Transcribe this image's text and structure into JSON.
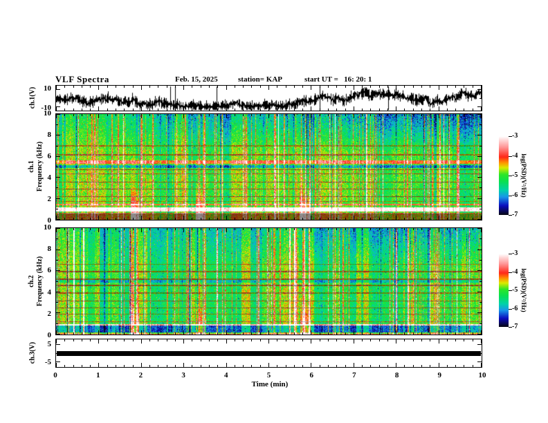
{
  "header": {
    "title": "VLF Spectra",
    "date": "Feb. 15, 2025",
    "station": "station= KAP",
    "start_ut": "start UT =   16: 20: 1"
  },
  "xaxis": {
    "label": "Time (min)",
    "ticks": [
      0,
      1,
      2,
      3,
      4,
      5,
      6,
      7,
      8,
      9,
      10
    ],
    "range": [
      0,
      10
    ],
    "minor_step_min": 0.2
  },
  "colorbar": {
    "label": "log(PSD)(V²/Hz)",
    "ticks": [
      -3,
      -4,
      -5,
      -6,
      -7
    ],
    "range": [
      -3,
      -7
    ],
    "stops": [
      [
        -7,
        8,
        8,
        24
      ],
      [
        -6.55,
        12,
        12,
        190
      ],
      [
        -6.1,
        25,
        150,
        235
      ],
      [
        -5.75,
        0,
        210,
        170
      ],
      [
        -5.3,
        10,
        225,
        80
      ],
      [
        -4.95,
        45,
        230,
        40
      ],
      [
        -4.6,
        220,
        235,
        0
      ],
      [
        -4.35,
        255,
        150,
        0
      ],
      [
        -4.05,
        255,
        40,
        25
      ],
      [
        -3.55,
        255,
        150,
        150
      ],
      [
        -3.2,
        255,
        215,
        215
      ],
      [
        -3,
        255,
        255,
        255
      ]
    ]
  },
  "panels": {
    "wave": {
      "label": "ch.1(V)",
      "ytick_items": [
        {
          "label": "10",
          "frac": 0.13
        },
        {
          "label": "-10",
          "frac": 0.87
        }
      ],
      "yrange": [
        -10,
        10
      ]
    },
    "spec1": {
      "label1": "ch.1",
      "label2": "Frequency (kHz)",
      "yticks": [
        10,
        8,
        6,
        4,
        2,
        0
      ],
      "yrange_khz": [
        0,
        10
      ]
    },
    "spec2": {
      "label1": "ch.2",
      "label2": "Frequency (kHz)",
      "yticks": [
        10,
        8,
        6,
        4,
        2,
        0
      ],
      "yrange_khz": [
        0,
        10
      ]
    },
    "ch3": {
      "label": "ch.3(V)",
      "ytick_items": [
        {
          "label": "5",
          "frac": 0.1875
        },
        {
          "label": "-5",
          "frac": 0.8125
        }
      ],
      "yrange": [
        -8,
        8
      ]
    }
  },
  "chart_data": [
    {
      "id": "ch1_waveform",
      "type": "line",
      "title": "ch.1(V)",
      "x_range_min": [
        0,
        10
      ],
      "y_range_volts": [
        -10,
        10
      ],
      "description": "dense noisy broadband voltage trace",
      "mean_level": -1,
      "noise_amplitude": 4,
      "spike_times_min": [
        2.68,
        2.8,
        3.78,
        6.2,
        7.8
      ],
      "seed": 11
    },
    {
      "id": "ch1_spectrogram",
      "type": "heatmap",
      "canvas": "c-spec1",
      "x_range_min": [
        0,
        10
      ],
      "y_range_khz": [
        0,
        10
      ],
      "z_range_logpsd": [
        -7,
        -3
      ],
      "seed": 7,
      "blue": 1.35,
      "streak_count": 120,
      "bands": [
        {
          "f": 7.0,
          "w": 0.05,
          "dv": 0.55,
          "mul": 0.7
        },
        {
          "f": 6.15,
          "w": 0.06,
          "dv": 0.75,
          "mul": 0.65
        },
        {
          "f": 5.45,
          "w": 0.17,
          "dv": 1.05
        },
        {
          "f": 5.05,
          "w": 0.14,
          "dv": -1.05
        },
        {
          "f": 4.75,
          "w": 0.05,
          "dv": 0.8,
          "mul": 0.6
        },
        {
          "f": 4.35,
          "w": 0.05,
          "dv": 0.95,
          "mul": 0.65
        },
        {
          "f": 3.55,
          "w": 0.05,
          "dv": 0.85,
          "mul": 0.6
        },
        {
          "f": 2.9,
          "w": 0.05,
          "dv": 0.8,
          "mul": 0.6
        },
        {
          "f": 2.2,
          "w": 0.05,
          "dv": 0.7,
          "mul": 0.6
        },
        {
          "f": 1.75,
          "w": 0.04,
          "dv": 0.6,
          "mul": 0.7
        },
        {
          "f": 1.45,
          "w": 0.07,
          "dv": 1.1
        },
        {
          "f": 0.98,
          "w": 0.17,
          "dv": 2.2
        },
        {
          "f": 0.62,
          "w": 0.05,
          "dv": 1.1,
          "mul": 0.8
        },
        {
          "f": 0.28,
          "w": 0.28,
          "dv": 0.5,
          "mul": 0.55
        }
      ],
      "bursts": [
        {
          "t": 1.85,
          "hw": 0.11,
          "amp": 2.0
        },
        {
          "t": 3.37,
          "hw": 0.09,
          "amp": 1.9
        },
        {
          "t": 5.85,
          "hw": 0.13,
          "amp": 2.0
        }
      ]
    },
    {
      "id": "ch2_spectrogram",
      "type": "heatmap",
      "canvas": "c-spec2",
      "x_range_min": [
        0,
        10
      ],
      "y_range_khz": [
        0,
        10
      ],
      "z_range_logpsd": [
        -7,
        -3
      ],
      "seed": 23,
      "blue": 0.85,
      "streak_count": 130,
      "bands": [
        {
          "f": 6.6,
          "w": 0.05,
          "dv": 0.6,
          "mul": 0.7
        },
        {
          "f": 5.9,
          "w": 0.05,
          "dv": 0.75,
          "mul": 0.6
        },
        {
          "f": 5.2,
          "w": 0.05,
          "dv": 0.7,
          "mul": 0.6
        },
        {
          "f": 5.0,
          "w": 0.1,
          "dv": -0.6
        },
        {
          "f": 4.6,
          "w": 0.05,
          "dv": 0.8,
          "mul": 0.6
        },
        {
          "f": 3.9,
          "w": 0.04,
          "dv": 0.6,
          "mul": 0.65
        },
        {
          "f": 3.15,
          "w": 0.05,
          "dv": 0.75,
          "mul": 0.6
        },
        {
          "f": 2.5,
          "w": 0.05,
          "dv": 0.7,
          "mul": 0.6
        },
        {
          "f": 1.9,
          "w": 0.04,
          "dv": 0.65,
          "mul": 0.65
        },
        {
          "f": 1.2,
          "w": 0.05,
          "dv": 0.9,
          "mul": 0.7
        },
        {
          "f": 0.9,
          "w": 0.06,
          "dv": 1.9
        },
        {
          "f": 0.45,
          "w": 0.4,
          "dv": -1.0
        },
        {
          "f": 0.1,
          "w": 0.08,
          "dv": 1.3
        }
      ],
      "bursts": [
        {
          "t": 1.85,
          "hw": 0.1,
          "amp": 1.7
        },
        {
          "t": 3.37,
          "hw": 0.09,
          "amp": 1.7
        },
        {
          "t": 5.85,
          "hw": 0.12,
          "amp": 1.7
        }
      ]
    },
    {
      "id": "ch3_level",
      "type": "line",
      "title": "ch.3(V)",
      "x_range_min": [
        0,
        10
      ],
      "y_range_volts": [
        -8,
        8
      ],
      "value": 0,
      "bar_half_thickness": 1.3,
      "description": "constant flat signal drawn as thick black bar"
    }
  ]
}
